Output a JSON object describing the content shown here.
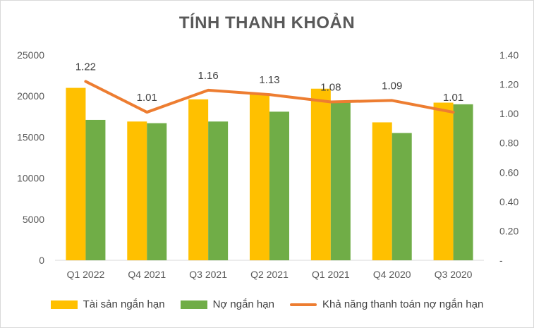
{
  "chart_data": {
    "type": "bar",
    "title": "TÍNH THANH KHOẢN",
    "categories": [
      "Q1 2022",
      "Q4 2021",
      "Q3 2021",
      "Q2 2021",
      "Q1 2021",
      "Q4 2020",
      "Q3 2020"
    ],
    "series": [
      {
        "name": "Tài sản ngắn hạn",
        "type": "bar",
        "axis": "left",
        "color": "#FFC000",
        "values": [
          21000,
          16900,
          19600,
          20200,
          20900,
          16800,
          19200
        ]
      },
      {
        "name": "Nợ ngắn hạn",
        "type": "bar",
        "axis": "left",
        "color": "#70AD47",
        "values": [
          17100,
          16700,
          16900,
          18100,
          19300,
          15500,
          19000
        ]
      },
      {
        "name": "Khả năng thanh toán nợ ngắn hạn",
        "type": "line",
        "axis": "right",
        "color": "#ED7D31",
        "values": [
          1.22,
          1.01,
          1.16,
          1.13,
          1.08,
          1.09,
          1.01
        ],
        "labels": [
          "1.22",
          "1.01",
          "1.16",
          "1.13",
          "1.08",
          "1.09",
          "1.01"
        ]
      }
    ],
    "y_left": {
      "ylim": [
        0,
        25000
      ],
      "ticks": [
        "0",
        "5000",
        "10000",
        "15000",
        "20000",
        "25000"
      ]
    },
    "y_right": {
      "ylim": [
        0,
        1.4
      ],
      "ticks": [
        "-",
        "0.20",
        "0.40",
        "0.60",
        "0.80",
        "1.00",
        "1.20",
        "1.40"
      ]
    },
    "grid": false,
    "legend_position": "bottom"
  }
}
